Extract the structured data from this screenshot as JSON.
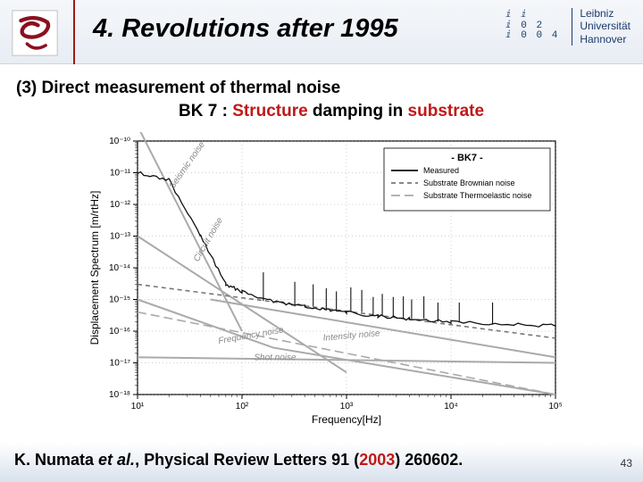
{
  "header": {
    "title": "4. Revolutions after 1995",
    "leibniz_lines": [
      "ⅈ  ⅈ",
      "ⅈ 0 2",
      "ⅈ 0 0 4"
    ],
    "leibniz_name": [
      "Leibniz",
      "Universität",
      "Hannover"
    ]
  },
  "subheading": {
    "line1": "(3) Direct measurement of thermal noise",
    "line2_pre": "BK 7 : ",
    "line2_red1": "Structure",
    "line2_mid": " damping in ",
    "line2_red2": "substrate"
  },
  "chart": {
    "xlabel": "Frequency[Hz]",
    "ylabel": "Displacement Spectrum [m/rtHz]",
    "legend_title": "- BK7 -",
    "legend": [
      {
        "label": "Measured",
        "stroke": "#111",
        "style": "solid"
      },
      {
        "label": "Substrate Brownian noise",
        "stroke": "#777",
        "style": "short-dash"
      },
      {
        "label": "Substrate Thermoelastic noise",
        "stroke": "#aaa",
        "style": "long-dash"
      }
    ],
    "x_ticks": [
      "10¹",
      "10²",
      "10³",
      "10⁴",
      "10⁵"
    ],
    "y_ticks": [
      "10⁻¹⁰",
      "10⁻¹¹",
      "10⁻¹²",
      "10⁻¹³",
      "10⁻¹⁴",
      "10⁻¹⁵",
      "10⁻¹⁶",
      "10⁻¹⁷",
      "10⁻¹⁸"
    ],
    "annotations": [
      "Seismic noise",
      "Circuit noise",
      "Frequency noise",
      "Intensity noise",
      "Shot noise"
    ],
    "series": {
      "measured": [
        [
          10,
          1e-11
        ],
        [
          20,
          6e-12
        ],
        [
          40,
          1e-13
        ],
        [
          70,
          3e-15
        ],
        [
          100,
          1.8e-15
        ],
        [
          200,
          9e-16
        ],
        [
          400,
          6e-16
        ],
        [
          700,
          4.5e-16
        ],
        [
          1000,
          4e-16
        ],
        [
          2000,
          3e-16
        ],
        [
          4000,
          2.5e-16
        ],
        [
          10000,
          2e-16
        ],
        [
          40000,
          1.6e-16
        ],
        [
          100000,
          1.5e-16
        ]
      ],
      "brownian": [
        [
          10,
          3e-15
        ],
        [
          100000,
          6e-17
        ]
      ],
      "thermoelastic": [
        [
          10,
          4e-16
        ],
        [
          100000,
          1e-18
        ]
      ],
      "seismic": [
        [
          10,
          3e-10
        ],
        [
          100,
          1e-16
        ]
      ],
      "circuit": [
        [
          10,
          1e-13
        ],
        [
          1000,
          5e-18
        ]
      ],
      "frequency": [
        [
          10,
          1e-15
        ],
        [
          200,
          3e-17
        ],
        [
          100000,
          1e-18
        ]
      ],
      "intensity": [
        [
          50,
          1e-15
        ],
        [
          100000,
          1.5e-17
        ]
      ],
      "shot": [
        [
          10,
          1.5e-17
        ],
        [
          100000,
          1e-17
        ]
      ]
    },
    "peaks": [
      [
        160,
        8
      ],
      [
        320,
        6
      ],
      [
        480,
        5
      ],
      [
        640,
        5
      ],
      [
        800,
        4
      ],
      [
        1100,
        6
      ],
      [
        1400,
        5
      ],
      [
        1800,
        4
      ],
      [
        2200,
        5
      ],
      [
        2800,
        4
      ],
      [
        3500,
        5
      ],
      [
        4200,
        4
      ],
      [
        5500,
        5
      ],
      [
        7500,
        4
      ],
      [
        12000,
        4
      ],
      [
        25000,
        5
      ]
    ],
    "colors": {
      "axis": "#000",
      "grid": "#888",
      "bg": "#ffffff",
      "measured": "#111",
      "noise_lines": "#aaa",
      "annot_text": "#888"
    },
    "xlim": [
      10,
      100000
    ],
    "ylim": [
      1e-18,
      1e-10
    ],
    "fontsize_axis": 12,
    "fontsize_tick": 10,
    "fontsize_annot": 10
  },
  "citation": {
    "pre": "K. Numata ",
    "ital": "et al.",
    "mid": ", Physical Review Letters 91 (",
    "year": "2003",
    "post": ") 260602."
  },
  "page_number": "43"
}
